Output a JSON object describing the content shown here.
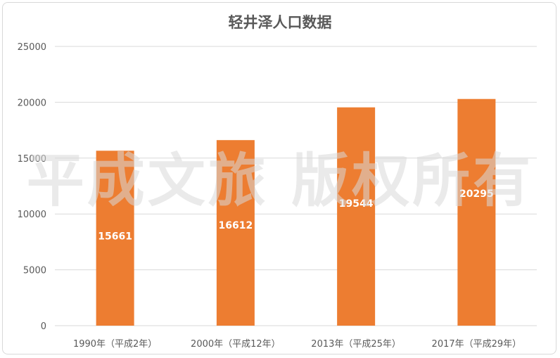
{
  "watermark": "平成文旅 版权所有",
  "chart_data": {
    "type": "bar",
    "title": "轻井泽人口数据",
    "categories": [
      "1990年（平成2年）",
      "2000年（平成12年）",
      "2013年（平成25年）",
      "2017年（平成29年）"
    ],
    "values": [
      15661,
      16612,
      19544,
      20295
    ],
    "ylim": [
      0,
      25000
    ],
    "yticks": [
      0,
      5000,
      10000,
      15000,
      20000,
      25000
    ],
    "grid": true,
    "legend": "none",
    "colors": {
      "bar": "#ED7D31",
      "grid": "#d9d9d9",
      "axis_text": "#595959",
      "data_label": "#ffffff"
    }
  }
}
